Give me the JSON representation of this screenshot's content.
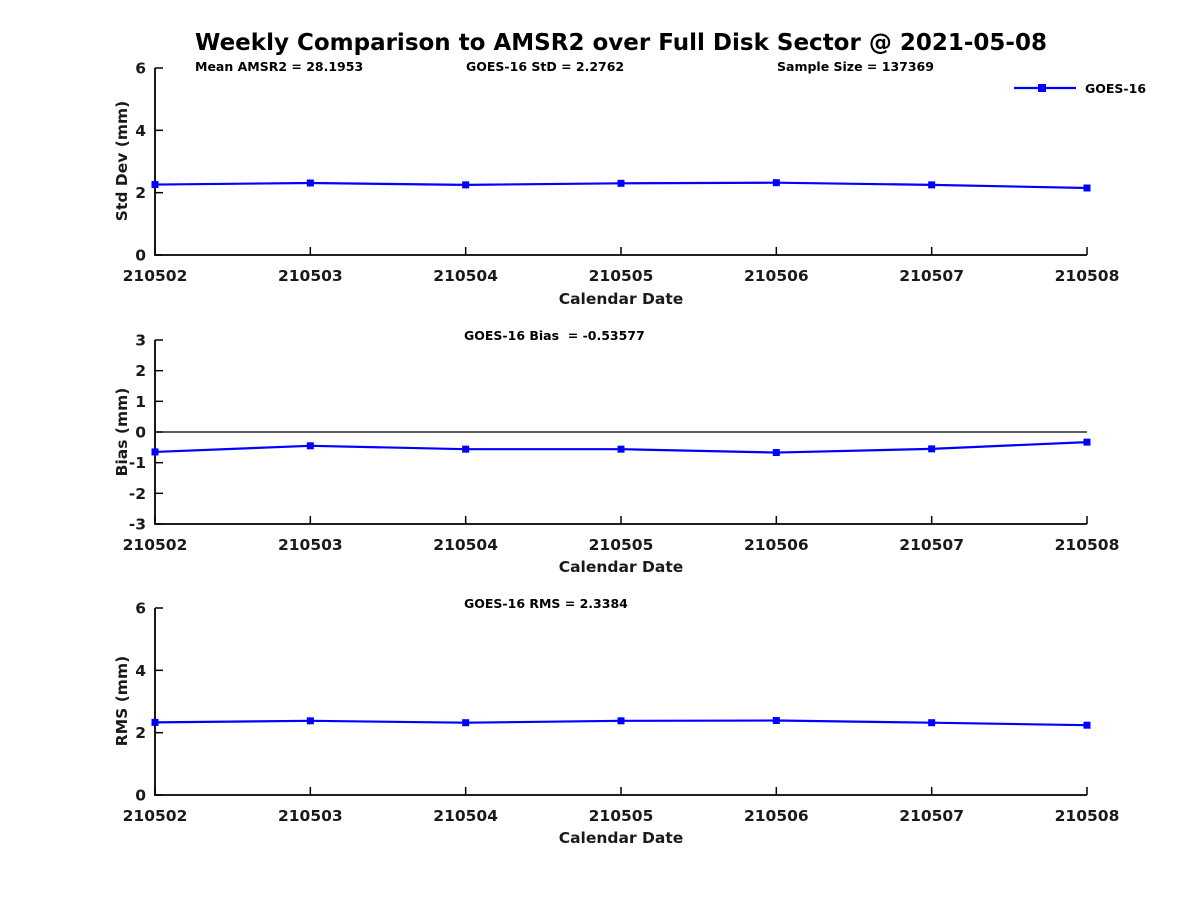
{
  "title": "Weekly Comparison to AMSR2 over Full Disk Sector @ 2021-05-08",
  "legend": {
    "label": "GOES-16",
    "color": "#0000FF",
    "marker": "square"
  },
  "chart_data": [
    {
      "type": "line",
      "name": "std-dev-panel",
      "x": [
        "210502",
        "210503",
        "210504",
        "210505",
        "210506",
        "210507",
        "210508"
      ],
      "series": [
        {
          "name": "GOES-16",
          "color": "#0000FF",
          "values": [
            2.26,
            2.31,
            2.25,
            2.3,
            2.32,
            2.25,
            2.15
          ]
        }
      ],
      "annotations": [
        "Mean AMSR2 = 28.1953",
        "GOES-16 StD = 2.2762",
        "Sample Size = 137369"
      ],
      "ylabel": "Std Dev (mm)",
      "xlabel": "Calendar Date",
      "ylim": [
        0,
        6
      ],
      "yticks": [
        0,
        2,
        4,
        6
      ],
      "grid": false,
      "zero_line": false,
      "legend_position": "outside-top-right"
    },
    {
      "type": "line",
      "name": "bias-panel",
      "x": [
        "210502",
        "210503",
        "210504",
        "210505",
        "210506",
        "210507",
        "210508"
      ],
      "series": [
        {
          "name": "GOES-16",
          "color": "#0000FF",
          "values": [
            -0.65,
            -0.45,
            -0.56,
            -0.56,
            -0.67,
            -0.55,
            -0.33
          ]
        }
      ],
      "annotation": "GOES-16 Bias  = -0.53577",
      "ylabel": "Bias (mm)",
      "xlabel": "Calendar Date",
      "ylim": [
        -3,
        3
      ],
      "yticks": [
        -3,
        -2,
        -1,
        0,
        1,
        2,
        3
      ],
      "grid": false,
      "zero_line": true
    },
    {
      "type": "line",
      "name": "rms-panel",
      "x": [
        "210502",
        "210503",
        "210504",
        "210505",
        "210506",
        "210507",
        "210508"
      ],
      "series": [
        {
          "name": "GOES-16",
          "color": "#0000FF",
          "values": [
            2.33,
            2.38,
            2.32,
            2.38,
            2.39,
            2.32,
            2.24
          ]
        }
      ],
      "annotation": "GOES-16 RMS = 2.3384",
      "ylabel": "RMS (mm)",
      "xlabel": "Calendar Date",
      "ylim": [
        0,
        6
      ],
      "yticks": [
        0,
        2,
        4,
        6
      ],
      "grid": false,
      "zero_line": false
    }
  ]
}
